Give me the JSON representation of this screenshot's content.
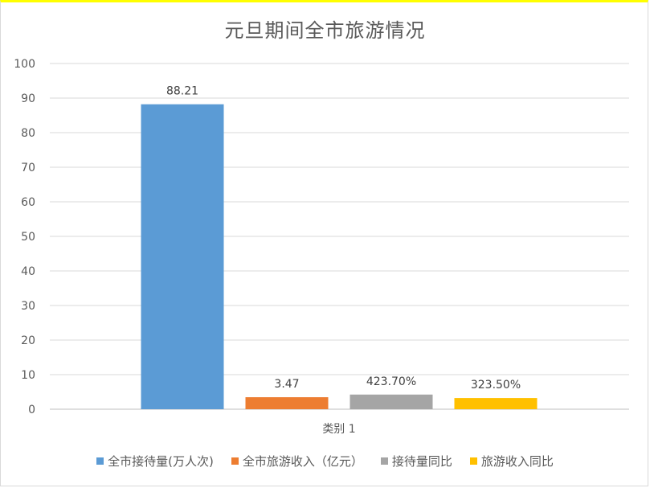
{
  "title": "元旦期间全市旅游情况",
  "chart_data": {
    "type": "bar",
    "title": "元旦期间全市旅游情况",
    "categories": [
      "类别 1"
    ],
    "ylim": [
      0,
      100
    ],
    "yticks": [
      "0",
      "10",
      "20",
      "30",
      "40",
      "50",
      "60",
      "70",
      "80",
      "90",
      "100"
    ],
    "grid": true,
    "legend_position": "bottom",
    "series": [
      {
        "name": "全市接待量(万人次)",
        "values": [
          88.21
        ],
        "label": "88.21",
        "color": "#5b9bd5"
      },
      {
        "name": "全市旅游收入（亿元）",
        "values": [
          3.47
        ],
        "label": "3.47",
        "color": "#ed7d31"
      },
      {
        "name": "接待量同比",
        "values": [
          4.237
        ],
        "label": "423.70%",
        "color": "#a5a5a5"
      },
      {
        "name": "旅游收入同比",
        "values": [
          3.235
        ],
        "label": "323.50%",
        "color": "#ffc000"
      }
    ]
  }
}
